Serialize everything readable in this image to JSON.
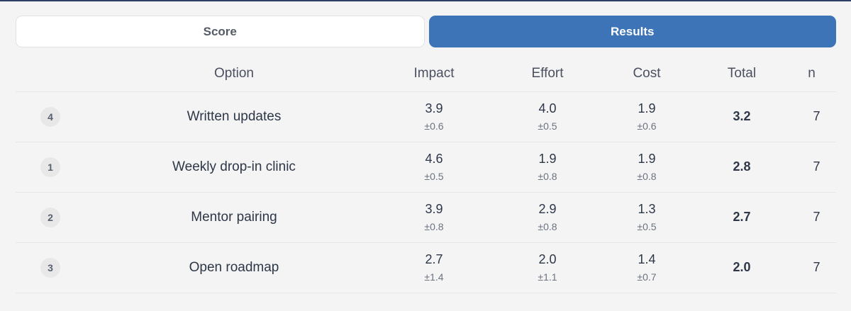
{
  "tabs": {
    "score_label": "Score",
    "results_label": "Results",
    "active": "Results"
  },
  "table": {
    "headers": {
      "rank": "",
      "option": "Option",
      "impact": "Impact",
      "effort": "Effort",
      "cost": "Cost",
      "total": "Total",
      "n": "n"
    },
    "rows": [
      {
        "rank": "4",
        "option": "Written updates",
        "impact": "3.9",
        "impact_sd": "±0.6",
        "effort": "4.0",
        "effort_sd": "±0.5",
        "cost": "1.9",
        "cost_sd": "±0.6",
        "total": "3.2",
        "n": "7"
      },
      {
        "rank": "1",
        "option": "Weekly drop-in clinic",
        "impact": "4.6",
        "impact_sd": "±0.5",
        "effort": "1.9",
        "effort_sd": "±0.8",
        "cost": "1.9",
        "cost_sd": "±0.8",
        "total": "2.8",
        "n": "7"
      },
      {
        "rank": "2",
        "option": "Mentor pairing",
        "impact": "3.9",
        "impact_sd": "±0.8",
        "effort": "2.9",
        "effort_sd": "±0.8",
        "cost": "1.3",
        "cost_sd": "±0.5",
        "total": "2.7",
        "n": "7"
      },
      {
        "rank": "3",
        "option": "Open roadmap",
        "impact": "2.7",
        "impact_sd": "±1.4",
        "effort": "2.0",
        "effort_sd": "±1.1",
        "cost": "1.4",
        "cost_sd": "±0.7",
        "total": "2.0",
        "n": "7"
      }
    ]
  },
  "colors": {
    "accent": "#3d74b7",
    "background": "#f4f4f4"
  }
}
